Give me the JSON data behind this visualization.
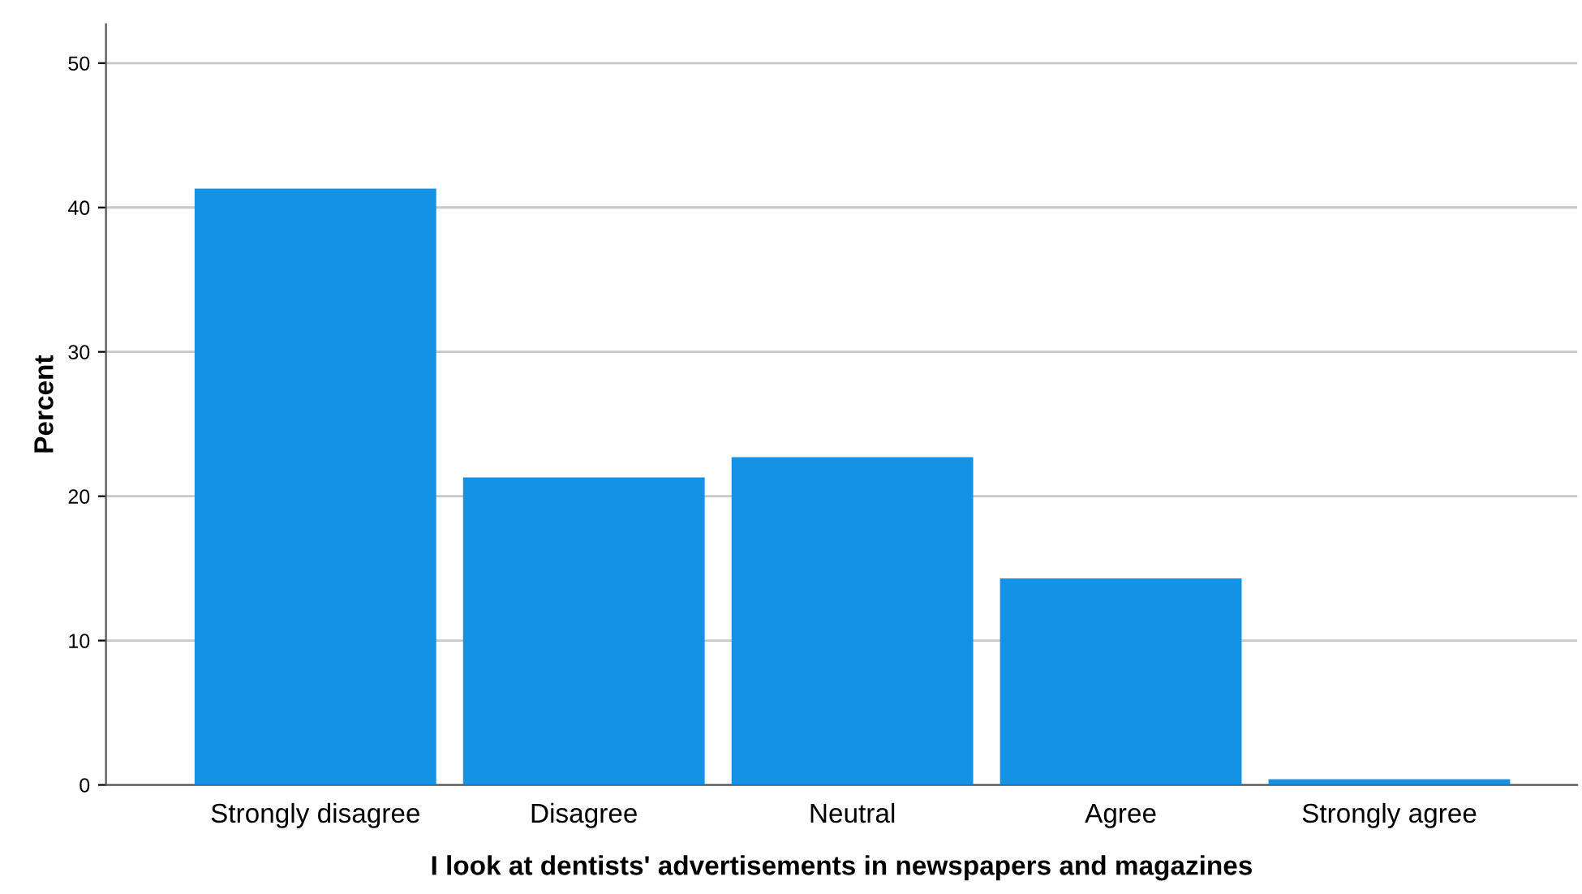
{
  "chart_data": {
    "type": "bar",
    "xlabel": "I look at dentists' advertisements in newspapers and magazines",
    "ylabel": "Percent",
    "categories": [
      "Strongly disagree",
      "Disagree",
      "Neutral",
      "Agree",
      "Strongly agree"
    ],
    "values": [
      41.3,
      21.3,
      22.7,
      14.3,
      0.4
    ],
    "color": "#1492e6",
    "ylim": [
      0,
      52.7
    ],
    "yticks": [
      0,
      10,
      20,
      30,
      40,
      50
    ],
    "grid": "y"
  }
}
